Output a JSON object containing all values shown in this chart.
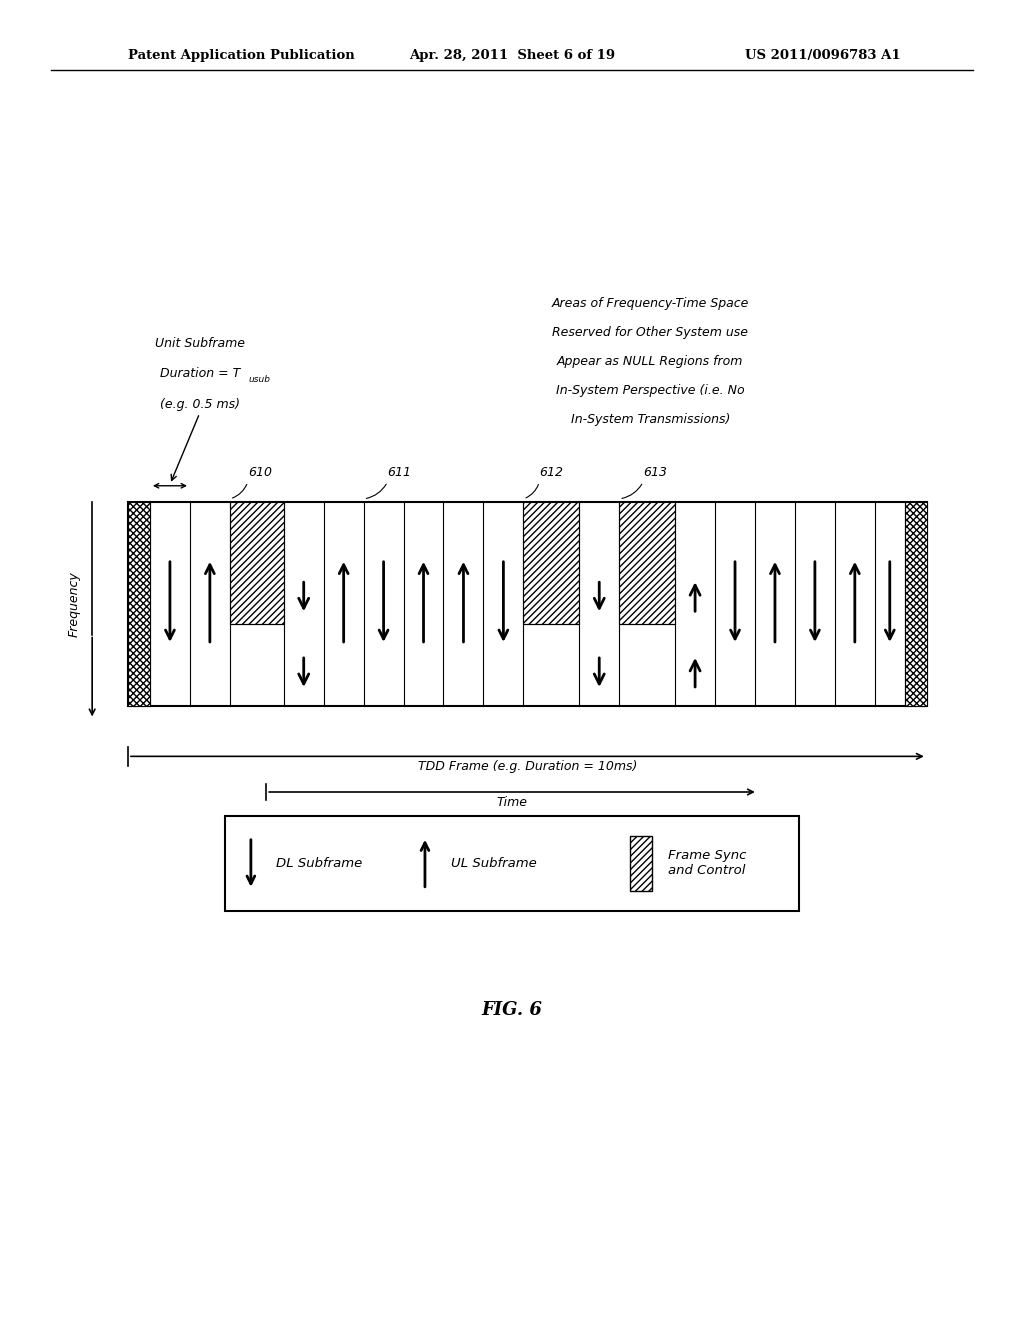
{
  "header_left": "Patent Application Publication",
  "header_mid": "Apr. 28, 2011  Sheet 6 of 19",
  "header_right": "US 2011/0096783 A1",
  "fig_label": "FIG. 6",
  "tdd_label": "TDD Frame (e.g. Duration = 10ms)",
  "time_label": "Time",
  "null_region_lines": [
    "Areas of Frequency-Time Space",
    "Reserved for Other System use",
    "Appear as NULL Regions from",
    "In-System Perspective (i.e. No",
    "In-System Transmissions)"
  ],
  "legend_dl": "DL Subframe",
  "legend_ul": "UL Subframe",
  "legend_sync": "Frame Sync\nand Control",
  "background": "#ffffff",
  "fl": 0.125,
  "fr": 0.905,
  "fb": 0.465,
  "ft": 0.62,
  "num_units": 20
}
